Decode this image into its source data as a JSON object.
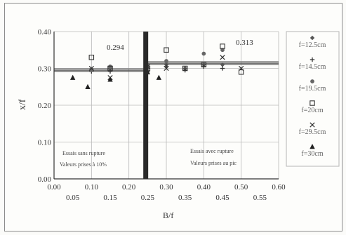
{
  "chart_data": {
    "type": "scatter",
    "xlabel": "B/f",
    "ylabel": "x/f",
    "xlim": [
      0,
      0.6
    ],
    "ylim": [
      0,
      0.4
    ],
    "x_ticks_major": [
      "0.00",
      "0.10",
      "0.20",
      "0.30",
      "0.40",
      "0.50",
      "0.60"
    ],
    "x_ticks_minor": [
      "0.05",
      "0.15",
      "0.25",
      "0.35",
      "0.45",
      "0.55"
    ],
    "y_ticks": [
      "0.00",
      "0.10",
      "0.20",
      "0.30",
      "0.40"
    ],
    "grid": true,
    "legend_position": "right",
    "threshold_x": 0.245,
    "mean_lines": [
      {
        "label": "0.294",
        "y": 0.294,
        "x_range": [
          0,
          0.245
        ]
      },
      {
        "label": "0.313",
        "y": 0.313,
        "x_range": [
          0.245,
          0.6
        ]
      }
    ],
    "annotations": [
      {
        "lines": [
          "Essais sans rupture",
          "Valeurs prises à 10%"
        ]
      },
      {
        "lines": [
          "Essais avec rupture",
          "Valeurs prises au pic"
        ]
      }
    ],
    "series": [
      {
        "name": "f=12.5cm",
        "marker": "diamond",
        "points": [
          [
            0.1,
            0.298
          ],
          [
            0.15,
            0.3
          ],
          [
            0.25,
            0.3
          ],
          [
            0.3,
            0.31
          ],
          [
            0.35,
            0.3
          ],
          [
            0.4,
            0.31
          ],
          [
            0.45,
            0.31
          ]
        ]
      },
      {
        "name": "f=14.5cm",
        "marker": "plus",
        "points": [
          [
            0.1,
            0.292
          ],
          [
            0.15,
            0.292
          ],
          [
            0.25,
            0.292
          ],
          [
            0.3,
            0.305
          ],
          [
            0.35,
            0.295
          ],
          [
            0.4,
            0.305
          ],
          [
            0.45,
            0.3
          ]
        ]
      },
      {
        "name": "f=19.5cm",
        "marker": "circle",
        "points": [
          [
            0.1,
            0.295
          ],
          [
            0.15,
            0.305
          ],
          [
            0.25,
            0.31
          ],
          [
            0.3,
            0.32
          ],
          [
            0.4,
            0.34
          ],
          [
            0.45,
            0.35
          ]
        ]
      },
      {
        "name": "f=20cm",
        "marker": "square",
        "points": [
          [
            0.1,
            0.33
          ],
          [
            0.15,
            0.3
          ],
          [
            0.25,
            0.3
          ],
          [
            0.3,
            0.35
          ],
          [
            0.35,
            0.3
          ],
          [
            0.4,
            0.31
          ],
          [
            0.45,
            0.36
          ],
          [
            0.5,
            0.29
          ]
        ]
      },
      {
        "name": "f=29.5cm",
        "marker": "x",
        "points": [
          [
            0.1,
            0.3
          ],
          [
            0.15,
            0.275
          ],
          [
            0.25,
            0.305
          ],
          [
            0.3,
            0.3
          ],
          [
            0.45,
            0.33
          ],
          [
            0.5,
            0.3
          ]
        ]
      },
      {
        "name": "f=30cm",
        "marker": "triangle",
        "points": [
          [
            0.05,
            0.275
          ],
          [
            0.09,
            0.25
          ],
          [
            0.15,
            0.27
          ],
          [
            0.25,
            0.29
          ],
          [
            0.28,
            0.275
          ]
        ]
      }
    ]
  }
}
